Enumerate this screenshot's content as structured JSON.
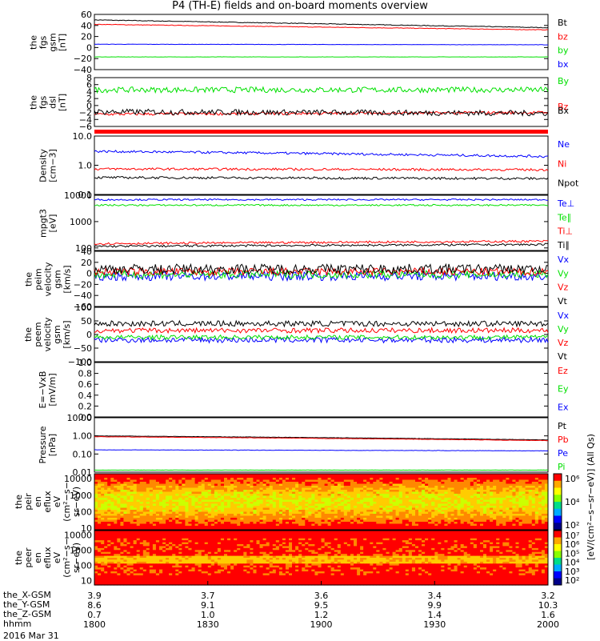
{
  "title": "P4 (TH-E) fields and on-board moments overview",
  "panels": [
    {
      "id": "fgs",
      "ylabel": [
        "the",
        "fgs",
        "gsm",
        "[nT]"
      ],
      "log": false,
      "yticks": [
        "60",
        "40",
        "20",
        "0",
        "−20",
        "−40"
      ],
      "ylim": [
        -40,
        60
      ],
      "series": [
        {
          "name": "Bt",
          "color": "#000000",
          "start": 50,
          "end": 36,
          "noise": 0.6
        },
        {
          "name": "bz",
          "color": "#ff0000",
          "start": 42,
          "end": 32,
          "noise": 0.5
        },
        {
          "name": "by",
          "color": "#00e000",
          "start": -17,
          "end": -17,
          "noise": 0.3
        },
        {
          "name": "bx",
          "color": "#0000ff",
          "start": 6,
          "end": 5,
          "noise": 0.3
        }
      ]
    },
    {
      "id": "fgs_dsl",
      "ylabel": [
        "the",
        "fgs",
        "dsl",
        "[nT]"
      ],
      "log": false,
      "yticks": [
        "8",
        "6",
        "4",
        "2",
        "0",
        "−2",
        "−4",
        "−6"
      ],
      "ylim": [
        -6,
        8
      ],
      "series": [
        {
          "name": "By",
          "color": "#00e000",
          "start": 4.5,
          "end": 4.5,
          "noise": 0.8
        },
        {
          "name": "Bz",
          "color": "#ff0000",
          "start": -2.5,
          "end": -2.0,
          "noise": 0.4
        },
        {
          "name": "Bx",
          "color": "#000000",
          "start": -1.8,
          "end": -2.2,
          "noise": 0.8
        }
      ]
    },
    {
      "id": "density",
      "ylabel": [
        "Density",
        "[cm−3]"
      ],
      "log": true,
      "yticks": [
        "10.0",
        "1.0",
        "0.1"
      ],
      "ylim": [
        0.1,
        10
      ],
      "series": [
        {
          "name": "Ne",
          "color": "#0000ff",
          "start": 3.0,
          "end": 2.0,
          "noise": 0.04
        },
        {
          "name": "Ni",
          "color": "#ff0000",
          "start": 0.75,
          "end": 0.7,
          "noise": 0.04
        },
        {
          "name": "Npot",
          "color": "#000000",
          "start": 0.38,
          "end": 0.35,
          "noise": 0.04
        }
      ]
    },
    {
      "id": "temp",
      "ylabel": [
        "mpgt3",
        "[eV]"
      ],
      "log": true,
      "yticks": [
        "10000",
        "1000",
        "100"
      ],
      "ylim": [
        80,
        10000
      ],
      "series": [
        {
          "name": "Te⊥",
          "color": "#0000ff",
          "start": 6800,
          "end": 6800,
          "noise": 0.03
        },
        {
          "name": "Te∥",
          "color": "#00e000",
          "start": 4200,
          "end": 4200,
          "noise": 0.03
        },
        {
          "name": "Ti⊥",
          "color": "#ff0000",
          "start": 145,
          "end": 180,
          "noise": 0.04
        },
        {
          "name": "Ti∥",
          "color": "#000000",
          "start": 115,
          "end": 135,
          "noise": 0.04
        }
      ]
    },
    {
      "id": "peim_vel",
      "ylabel": [
        "the",
        "peim",
        "velocity",
        "gsm",
        "[km/s]"
      ],
      "log": false,
      "yticks": [
        "40",
        "20",
        "0",
        "−20",
        "−40",
        "−60"
      ],
      "ylim": [
        -60,
        40
      ],
      "series": [
        {
          "name": "Vx",
          "color": "#0000ff",
          "start": -5,
          "end": -5,
          "noise": 8
        },
        {
          "name": "Vy",
          "color": "#00e000",
          "start": -2,
          "end": -2,
          "noise": 7
        },
        {
          "name": "Vz",
          "color": "#ff0000",
          "start": 3,
          "end": 3,
          "noise": 7
        },
        {
          "name": "Vt",
          "color": "#000000",
          "start": 8,
          "end": 8,
          "noise": 9
        }
      ]
    },
    {
      "id": "peem_vel",
      "ylabel": [
        "the",
        "peem",
        "velocity",
        "gsm",
        "[km/s]"
      ],
      "log": false,
      "yticks": [
        "100",
        "50",
        "0",
        "−50",
        "−100"
      ],
      "ylim": [
        -100,
        100
      ],
      "series": [
        {
          "name": "Vx",
          "color": "#0000ff",
          "start": -20,
          "end": -20,
          "noise": 10
        },
        {
          "name": "Vy",
          "color": "#00e000",
          "start": -10,
          "end": -10,
          "noise": 8
        },
        {
          "name": "Vz",
          "color": "#ff0000",
          "start": 15,
          "end": 15,
          "noise": 9
        },
        {
          "name": "Vt",
          "color": "#000000",
          "start": 40,
          "end": 40,
          "noise": 10
        }
      ]
    },
    {
      "id": "efield",
      "ylabel": [
        "E=−VxB",
        "[mV/m]"
      ],
      "log": false,
      "yticks": [
        "1.0",
        "0.8",
        "0.6",
        "0.4",
        "0.2",
        "0.0"
      ],
      "ylim": [
        0,
        1
      ],
      "series": [
        {
          "name": "Ez",
          "color": "#ff0000"
        },
        {
          "name": "Ey",
          "color": "#00e000"
        },
        {
          "name": "Ex",
          "color": "#0000ff"
        }
      ]
    },
    {
      "id": "pressure",
      "ylabel": [
        "Pressure",
        "[nPa]"
      ],
      "log": true,
      "yticks": [
        "10.00",
        "1.00",
        "0.10",
        "0.01"
      ],
      "ylim": [
        0.01,
        10
      ],
      "series": [
        {
          "name": "Pt",
          "color": "#000000",
          "start": 1.0,
          "end": 0.6,
          "noise": 0.01
        },
        {
          "name": "Pb",
          "color": "#ff0000",
          "start": 0.9,
          "end": 0.55,
          "noise": 0.01
        },
        {
          "name": "Pe",
          "color": "#0000ff",
          "start": 0.17,
          "end": 0.15,
          "noise": 0.01
        },
        {
          "name": "Pi",
          "color": "#00e000",
          "start": 0.013,
          "end": 0.013,
          "noise": 0.005
        }
      ]
    },
    {
      "id": "peir",
      "ylabel": [
        "the",
        "peir",
        "en",
        "eflux",
        "eV",
        "(cm²−s−",
        "sr−eV)"
      ],
      "log": true,
      "yticks": [
        "10000",
        "1000",
        "100",
        "10"
      ],
      "ylim": [
        8,
        20000
      ]
    },
    {
      "id": "peer",
      "ylabel": [
        "the",
        "peer",
        "en",
        "eflux",
        "eV",
        "(cm²−s−",
        "sr−eV)"
      ],
      "log": true,
      "yticks": [
        "10000",
        "1000",
        "100",
        "10"
      ],
      "ylim": [
        5,
        20000
      ]
    }
  ],
  "colorbar": {
    "label": "[eV/(cm²−s−sr−eV)] (All Qs)",
    "top_ticks": [
      "10⁶",
      "10⁴",
      "10²"
    ],
    "bottom_ticks": [
      "10⁷",
      "10⁶",
      "10⁵",
      "10⁴",
      "10³",
      "10²"
    ]
  },
  "time_axis": {
    "rows": [
      "the_X-GSM",
      "the_Y-GSM",
      "the_Z-GSM",
      "hhmm"
    ],
    "columns": [
      {
        "x": "3.9",
        "y": "8.6",
        "z": "0.7",
        "t": "1800"
      },
      {
        "x": "3.7",
        "y": "9.1",
        "z": "1.0",
        "t": "1830"
      },
      {
        "x": "3.6",
        "y": "9.5",
        "z": "1.2",
        "t": "1900"
      },
      {
        "x": "3.4",
        "y": "9.9",
        "z": "1.4",
        "t": "1930"
      },
      {
        "x": "3.2",
        "y": "10.3",
        "z": "1.6",
        "t": "2000"
      }
    ],
    "date": "2016 Mar 31"
  },
  "chart_data": {
    "type": "line",
    "title": "P4 (TH-E) fields and on-board moments overview",
    "xlabel": "hhmm",
    "x": [
      "1800",
      "1830",
      "1900",
      "1930",
      "2000"
    ],
    "series": [
      {
        "name": "Bt",
        "values": [
          50,
          47,
          44,
          40,
          36
        ]
      },
      {
        "name": "bz",
        "values": [
          42,
          40,
          37,
          34,
          32
        ]
      },
      {
        "name": "by",
        "values": [
          -17,
          -17,
          -17,
          -17,
          -17
        ]
      },
      {
        "name": "bx",
        "values": [
          6,
          6,
          5,
          5,
          5
        ]
      },
      {
        "name": "Ne",
        "values": [
          3.0,
          2.8,
          2.5,
          2.3,
          2.0
        ]
      },
      {
        "name": "Ni",
        "values": [
          0.75,
          0.75,
          0.72,
          0.72,
          0.7
        ]
      },
      {
        "name": "Npot",
        "values": [
          0.38,
          0.37,
          0.36,
          0.36,
          0.35
        ]
      },
      {
        "name": "Pt",
        "values": [
          1.0,
          0.9,
          0.8,
          0.7,
          0.6
        ]
      },
      {
        "name": "Pe",
        "values": [
          0.17,
          0.17,
          0.16,
          0.16,
          0.15
        ]
      }
    ]
  }
}
